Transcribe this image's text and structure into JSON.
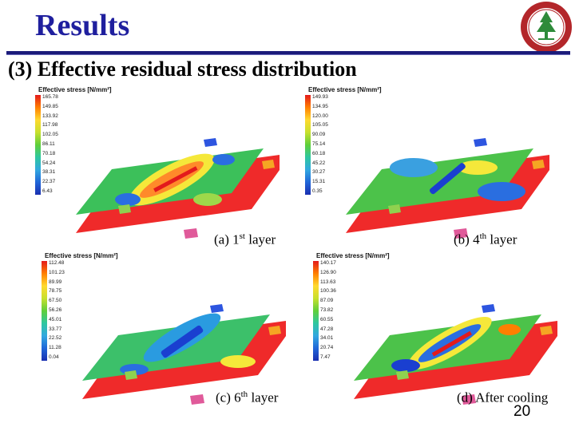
{
  "slide": {
    "title": "Results",
    "subtitle": "(3) Effective residual stress distribution",
    "page_number": "20"
  },
  "colors": {
    "title": "#1f1f9e",
    "rule": "#1b1b7a",
    "plate": "#ef2a2a",
    "clamp_blue": "#2d55e0",
    "clamp_orange": "#f5a623",
    "clamp_green": "#8fd14f",
    "clamp_pink": "#e05a9a"
  },
  "panels": [
    {
      "caption_prefix": "(a) 1",
      "caption_sup": "st",
      "caption_suffix": " layer",
      "legend_title": "Effective stress [N/mm²]",
      "ticks": [
        "165.78",
        "149.85",
        "133.92",
        "117.98",
        "102.05",
        "86.11",
        "70.18",
        "54.24",
        "38.31",
        "22.37",
        "6.43"
      ]
    },
    {
      "caption_prefix": "(b) 4",
      "caption_sup": "th",
      "caption_suffix": "  layer",
      "legend_title": "Effective stress [N/mm²]",
      "ticks": [
        "149.93",
        "134.95",
        "120.00",
        "105.05",
        "90.09",
        "75.14",
        "60.18",
        "45.22",
        "30.27",
        "15.31",
        "0.35"
      ]
    },
    {
      "caption_prefix": "(c) 6",
      "caption_sup": "th",
      "caption_suffix": " layer",
      "legend_title": "Effective stress [N/mm²]",
      "ticks": [
        "112.48",
        "101.23",
        "89.99",
        "78.75",
        "67.50",
        "56.26",
        "45.01",
        "33.77",
        "22.52",
        "11.28",
        "0.04"
      ]
    },
    {
      "caption_prefix": "(d) After cooling",
      "caption_sup": "",
      "caption_suffix": "",
      "legend_title": "Effective stress [N/mm²]",
      "ticks": [
        "140.17",
        "126.90",
        "113.63",
        "100.36",
        "87.09",
        "73.82",
        "60.55",
        "47.28",
        "34.01",
        "20.74",
        "7.47"
      ]
    }
  ]
}
